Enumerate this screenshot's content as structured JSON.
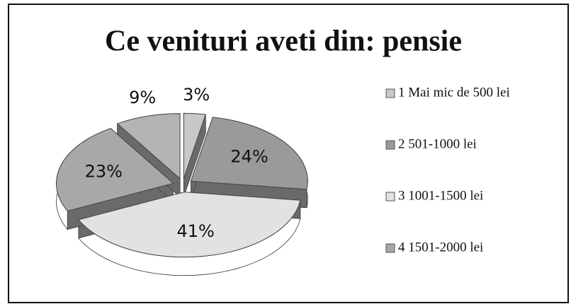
{
  "chart_data": {
    "type": "pie",
    "title": "Ce venituri aveti din: pensie",
    "categories": [
      "1  Mai mic de 500 lei",
      "2 501-1000 lei",
      "3  1001-1500 lei",
      "4 1501-2000 lei",
      null
    ],
    "values": [
      3,
      24,
      41,
      23,
      9
    ],
    "value_labels": [
      "3%",
      "24%",
      "41%",
      "23%",
      "9%"
    ],
    "colors": [
      "#c8c8c8",
      "#9a9a9a",
      "#e2e2e2",
      "#a8a8a8",
      "#b4b4b4"
    ]
  }
}
